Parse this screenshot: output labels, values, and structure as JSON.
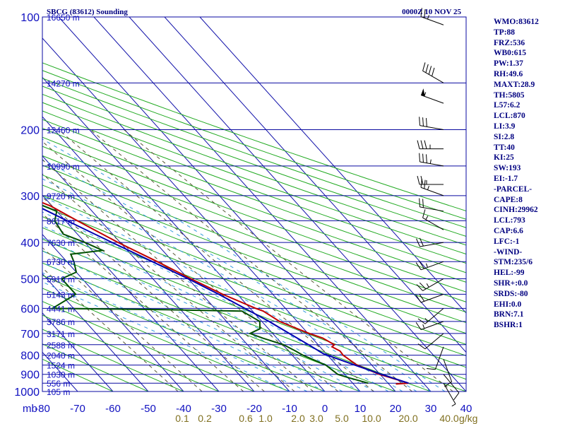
{
  "header": {
    "station": "SBCG (83612) Sounding",
    "time": "0000Z 10 NOV 25"
  },
  "indices": [
    "WMO:83612",
    "TP:88",
    "FRZ:536",
    "WB0:615",
    "PW:1.37",
    "RH:49.6",
    "MAXT:28.9",
    "TH:5805",
    "L57:6.2",
    "LCL:870",
    "LI:3.9",
    "SI:2.8",
    "TT:40",
    "KI:25",
    "SW:193",
    "EI:-1.7",
    "-PARCEL-",
    "CAPE:8",
    "CINH:29962",
    "LCL:793",
    "CAP:6.6",
    "LFC:-1",
    "-WIND-",
    "STM:235/6",
    "HEL:-99",
    "SHR+:0.0",
    "SRDS:-80",
    "EHI:0.0",
    "BRN:7.1",
    "BSHR:1"
  ],
  "chart_data": {
    "type": "skew-t",
    "title": "SBCG (83612) Sounding",
    "pressure_unit_label": "mb",
    "mixing_ratio_unit_label": "g/kg",
    "pressure_ticks": [
      100,
      200,
      300,
      400,
      500,
      600,
      700,
      800,
      900,
      1000
    ],
    "pressure_tick_labels": [
      "100",
      "200",
      "300",
      "400",
      "500",
      "600",
      "700",
      "800",
      "900",
      "1000"
    ],
    "temperature_ticks": [
      -80,
      -70,
      -60,
      -50,
      -40,
      -30,
      -20,
      -10,
      0,
      10,
      20,
      30,
      40
    ],
    "temperature_tick_labels": [
      "-80",
      "-70",
      "-60",
      "-50",
      "-40",
      "-30",
      "-20",
      "-10",
      "0",
      "10",
      "20",
      "30",
      "40"
    ],
    "height_labels": [
      {
        "p": 100,
        "label": "16650 m"
      },
      {
        "p": 150,
        "label": "14270 m"
      },
      {
        "p": 200,
        "label": "12460 m"
      },
      {
        "p": 250,
        "label": "10990 m"
      },
      {
        "p": 300,
        "label": "9720 m"
      },
      {
        "p": 350,
        "label": "8617 m"
      },
      {
        "p": 400,
        "label": "7630 m"
      },
      {
        "p": 450,
        "label": "6730 m"
      },
      {
        "p": 500,
        "label": "5910 m"
      },
      {
        "p": 550,
        "label": "5143 m"
      },
      {
        "p": 600,
        "label": "4441 m"
      },
      {
        "p": 650,
        "label": "3786 m"
      },
      {
        "p": 700,
        "label": "3171 m"
      },
      {
        "p": 750,
        "label": "2588 m"
      },
      {
        "p": 800,
        "label": "2040 m"
      },
      {
        "p": 850,
        "label": "1524 m"
      },
      {
        "p": 900,
        "label": "1030 m"
      },
      {
        "p": 950,
        "label": "556 m"
      },
      {
        "p": 1000,
        "label": "105 m"
      }
    ],
    "mixing_ratio_labels": [
      "0.1",
      "0.2",
      "0.6",
      "1.0",
      "2.0",
      "3.0",
      "5.0",
      "10.0",
      "20.0",
      "40.0"
    ],
    "mixing_ratio_values": [
      0.1,
      0.2,
      0.6,
      1.0,
      2.0,
      3.0,
      5.0,
      10.0,
      20.0,
      40.0
    ],
    "series": [
      {
        "name": "Temperature",
        "color": "#c00000",
        "points": [
          [
            955,
            22.0
          ],
          [
            950,
            25.8
          ],
          [
            900,
            19.8
          ],
          [
            850,
            15.8
          ],
          [
            800,
            14.4
          ],
          [
            780,
            14.6
          ],
          [
            760,
            13.4
          ],
          [
            750,
            14.6
          ],
          [
            720,
            13.0
          ],
          [
            700,
            10.4
          ],
          [
            680,
            8.2
          ],
          [
            650,
            5.0
          ],
          [
            610,
            3.0
          ],
          [
            600,
            1.6
          ],
          [
            550,
            -4.2
          ],
          [
            500,
            -9.2
          ],
          [
            450,
            -14.4
          ],
          [
            400,
            -20.6
          ],
          [
            350,
            -26.6
          ],
          [
            320,
            -30.4
          ],
          [
            300,
            -35.0
          ],
          [
            250,
            -44.2
          ],
          [
            200,
            -55.6
          ],
          [
            150,
            -66.0
          ],
          [
            100,
            -78.0
          ]
        ]
      },
      {
        "name": "Dewpoint",
        "color": "#005000",
        "points": [
          [
            950,
            14.4
          ],
          [
            920,
            10.4
          ],
          [
            900,
            8.0
          ],
          [
            850,
            7.0
          ],
          [
            800,
            3.0
          ],
          [
            780,
            2.0
          ],
          [
            750,
            0.2
          ],
          [
            720,
            -4.0
          ],
          [
            700,
            -6.4
          ],
          [
            680,
            -2.4
          ],
          [
            650,
            -0.6
          ],
          [
            610,
            -3.0
          ],
          [
            605,
            -24.2
          ],
          [
            600,
            -56.0
          ],
          [
            550,
            -45.8
          ],
          [
            500,
            -45.8
          ],
          [
            480,
            -40.0
          ],
          [
            450,
            -38.0
          ],
          [
            430,
            -37.0
          ],
          [
            420,
            -27.0
          ],
          [
            400,
            -30.0
          ],
          [
            380,
            -34.0
          ],
          [
            350,
            -33.0
          ],
          [
            330,
            -30.0
          ],
          [
            300,
            -37.0
          ],
          [
            250,
            -60.0
          ],
          [
            230,
            -66.0
          ],
          [
            210,
            -62.0
          ],
          [
            200,
            -68.0
          ],
          [
            180,
            -72.0
          ],
          [
            170,
            -73.0
          ],
          [
            165,
            -68.0
          ],
          [
            160,
            -74.0
          ],
          [
            155,
            -74.0
          ],
          [
            140,
            -86.0
          ]
        ]
      },
      {
        "name": "Parcel",
        "color": "#0000b0",
        "points": [
          [
            950,
            25.8
          ],
          [
            900,
            20.4
          ],
          [
            850,
            15.2
          ],
          [
            793,
            9.2
          ],
          [
            750,
            7.3
          ],
          [
            700,
            4.7
          ],
          [
            650,
            2.0
          ],
          [
            600,
            -1.5
          ],
          [
            550,
            -5.3
          ],
          [
            500,
            -10.0
          ],
          [
            450,
            -15.8
          ],
          [
            400,
            -22.3
          ],
          [
            350,
            -29.5
          ],
          [
            300,
            -37.5
          ],
          [
            250,
            -46.5
          ],
          [
            200,
            -56.5
          ],
          [
            150,
            -68.5
          ],
          [
            140,
            -71.0
          ]
        ]
      }
    ],
    "wind_barbs": [
      {
        "p": 105,
        "dir": 290,
        "spd": 25
      },
      {
        "p": 150,
        "dir": 300,
        "spd": 40
      },
      {
        "p": 170,
        "dir": 290,
        "spd": 55
      },
      {
        "p": 200,
        "dir": 280,
        "spd": 30
      },
      {
        "p": 225,
        "dir": 270,
        "spd": 35
      },
      {
        "p": 250,
        "dir": 280,
        "spd": 35
      },
      {
        "p": 280,
        "dir": 270,
        "spd": 25
      },
      {
        "p": 300,
        "dir": 290,
        "spd": 25
      },
      {
        "p": 330,
        "dir": 280,
        "spd": 20
      },
      {
        "p": 370,
        "dir": 300,
        "spd": 15
      },
      {
        "p": 400,
        "dir": 260,
        "spd": 20
      },
      {
        "p": 450,
        "dir": 250,
        "spd": 25
      },
      {
        "p": 500,
        "dir": 240,
        "spd": 25
      },
      {
        "p": 550,
        "dir": 250,
        "spd": 20
      },
      {
        "p": 600,
        "dir": 230,
        "spd": 15
      },
      {
        "p": 650,
        "dir": 250,
        "spd": 15
      },
      {
        "p": 700,
        "dir": 230,
        "spd": 10
      },
      {
        "p": 760,
        "dir": 200,
        "spd": 10
      },
      {
        "p": 820,
        "dir": 160,
        "spd": 10
      },
      {
        "p": 900,
        "dir": 140,
        "spd": 10
      },
      {
        "p": 950,
        "dir": 150,
        "spd": 5
      }
    ]
  }
}
